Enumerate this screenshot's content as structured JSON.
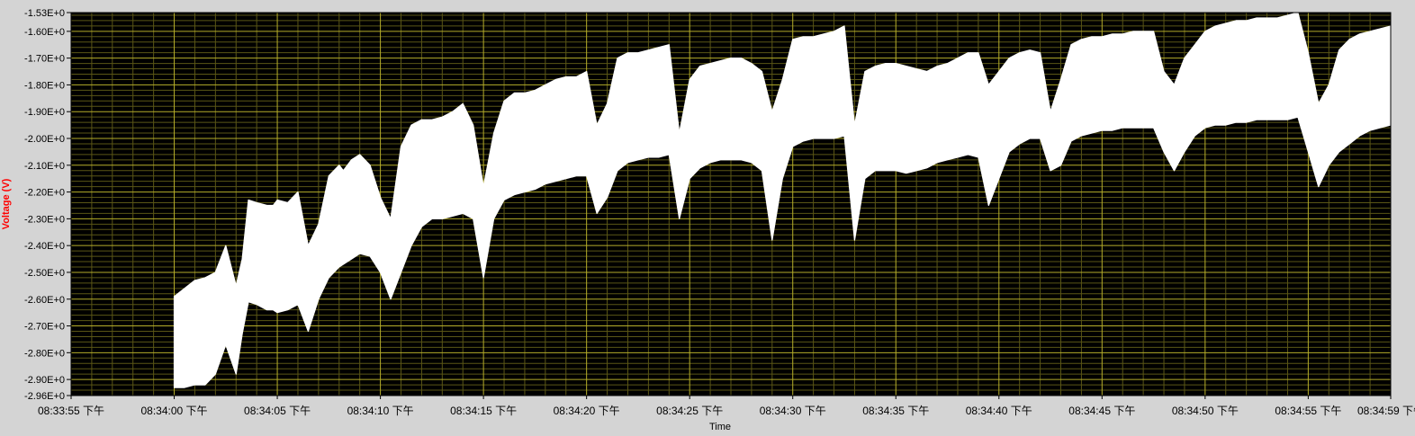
{
  "chart_data": {
    "type": "area",
    "title": "",
    "xlabel": "Time",
    "ylabel": "Voltage (V)",
    "ylim": [
      -2.96,
      -1.53
    ],
    "xlim_seconds": [
      0,
      64
    ],
    "grid": true,
    "y_ticks": [
      "-1.53E+0",
      "-1.60E+0",
      "-1.70E+0",
      "-1.80E+0",
      "-1.90E+0",
      "-2.00E+0",
      "-2.10E+0",
      "-2.20E+0",
      "-2.30E+0",
      "-2.40E+0",
      "-2.50E+0",
      "-2.60E+0",
      "-2.70E+0",
      "-2.80E+0",
      "-2.90E+0",
      "-2.96E+0"
    ],
    "x_ticks": [
      "08:33:55 下午",
      "08:34:00 下午",
      "08:34:05 下午",
      "08:34:10 下午",
      "08:34:15 下午",
      "08:34:20 下午",
      "08:34:25 下午",
      "08:34:30 下午",
      "08:34:35 下午",
      "08:34:40 下午",
      "08:34:45 下午",
      "08:34:50 下午",
      "08:34:55 下午",
      "08:34:59 下午"
    ],
    "colors": {
      "plot_bg": "#000000",
      "grid": "#b5ad2a",
      "grid_minor": "#5a5616",
      "data": "#ffffff",
      "ylabel": "#ff0000",
      "frame_bg": "#d4d4d4"
    },
    "series": [
      {
        "time_s": [
          5.0,
          5.5,
          6.0,
          6.5,
          7.0,
          7.5,
          8.0,
          8.3,
          8.6,
          9.0,
          9.5,
          9.8,
          10.0,
          10.5,
          11.0,
          11.5,
          12.0,
          12.5,
          13.0,
          13.2,
          13.6,
          14.0,
          14.5,
          15.0,
          15.5,
          16.0,
          16.5,
          17.0,
          17.5,
          18.0,
          18.5,
          19.0,
          19.5,
          20.0,
          20.5,
          21.0,
          21.5,
          22.0,
          22.5,
          23.0,
          23.5,
          24.0,
          24.5,
          25.0,
          25.5,
          26.0,
          26.5,
          27.0,
          27.5,
          28.0,
          28.5,
          29.0,
          29.5,
          30.0,
          30.5,
          31.0,
          31.5,
          32.0,
          32.5,
          33.0,
          33.5,
          34.0,
          34.5,
          35.0,
          35.5,
          36.0,
          36.5,
          37.0,
          37.5,
          38.0,
          38.5,
          39.0,
          39.5,
          40.0,
          40.5,
          41.0,
          41.5,
          42.0,
          42.5,
          43.0,
          43.5,
          44.0,
          44.5,
          45.0,
          45.5,
          46.0,
          46.5,
          47.0,
          47.5,
          48.0,
          48.5,
          49.0,
          49.5,
          50.0,
          50.5,
          51.0,
          51.5,
          52.0,
          52.5,
          53.0,
          53.5,
          54.0,
          54.5,
          55.0,
          55.5,
          56.0,
          56.5,
          57.0,
          57.5,
          58.0,
          58.5,
          59.0,
          59.5,
          60.0,
          60.5,
          61.0,
          61.5,
          62.0,
          62.5,
          63.0,
          63.5,
          64.0
        ],
        "upper_v": [
          -2.59,
          -2.56,
          -2.53,
          -2.52,
          -2.5,
          -2.4,
          -2.55,
          -2.45,
          -2.23,
          -2.24,
          -2.25,
          -2.25,
          -2.23,
          -2.24,
          -2.2,
          -2.4,
          -2.32,
          -2.14,
          -2.1,
          -2.12,
          -2.08,
          -2.06,
          -2.1,
          -2.22,
          -2.3,
          -2.03,
          -1.95,
          -1.93,
          -1.93,
          -1.92,
          -1.9,
          -1.87,
          -1.95,
          -2.18,
          -1.98,
          -1.86,
          -1.83,
          -1.83,
          -1.82,
          -1.8,
          -1.78,
          -1.77,
          -1.77,
          -1.75,
          -1.95,
          -1.87,
          -1.7,
          -1.68,
          -1.68,
          -1.67,
          -1.66,
          -1.65,
          -1.98,
          -1.78,
          -1.73,
          -1.72,
          -1.71,
          -1.7,
          -1.7,
          -1.72,
          -1.75,
          -1.9,
          -1.78,
          -1.63,
          -1.62,
          -1.62,
          -1.61,
          -1.6,
          -1.58,
          -1.95,
          -1.75,
          -1.73,
          -1.72,
          -1.72,
          -1.73,
          -1.74,
          -1.75,
          -1.73,
          -1.72,
          -1.7,
          -1.68,
          -1.68,
          -1.8,
          -1.75,
          -1.7,
          -1.68,
          -1.67,
          -1.68,
          -1.9,
          -1.78,
          -1.65,
          -1.63,
          -1.62,
          -1.62,
          -1.61,
          -1.61,
          -1.6,
          -1.6,
          -1.6,
          -1.75,
          -1.8,
          -1.7,
          -1.65,
          -1.6,
          -1.58,
          -1.57,
          -1.56,
          -1.56,
          -1.55,
          -1.55,
          -1.55,
          -1.54,
          -1.53,
          -1.68,
          -1.87,
          -1.8,
          -1.67,
          -1.63,
          -1.61,
          -1.6,
          -1.59,
          -1.58
        ],
        "lower_v": [
          -2.93,
          -2.93,
          -2.92,
          -2.92,
          -2.88,
          -2.77,
          -2.88,
          -2.73,
          -2.61,
          -2.62,
          -2.64,
          -2.64,
          -2.65,
          -2.64,
          -2.62,
          -2.72,
          -2.6,
          -2.52,
          -2.48,
          -2.47,
          -2.45,
          -2.43,
          -2.44,
          -2.5,
          -2.6,
          -2.5,
          -2.4,
          -2.33,
          -2.3,
          -2.3,
          -2.29,
          -2.28,
          -2.3,
          -2.52,
          -2.3,
          -2.23,
          -2.21,
          -2.2,
          -2.19,
          -2.17,
          -2.16,
          -2.15,
          -2.14,
          -2.14,
          -2.28,
          -2.22,
          -2.12,
          -2.09,
          -2.08,
          -2.07,
          -2.07,
          -2.06,
          -2.3,
          -2.15,
          -2.11,
          -2.09,
          -2.08,
          -2.08,
          -2.08,
          -2.09,
          -2.12,
          -2.38,
          -2.15,
          -2.03,
          -2.01,
          -2.0,
          -2.0,
          -2.0,
          -1.99,
          -2.38,
          -2.15,
          -2.12,
          -2.12,
          -2.12,
          -2.13,
          -2.12,
          -2.11,
          -2.09,
          -2.08,
          -2.07,
          -2.06,
          -2.07,
          -2.25,
          -2.15,
          -2.05,
          -2.02,
          -2.0,
          -2.0,
          -2.12,
          -2.1,
          -2.01,
          -1.99,
          -1.98,
          -1.97,
          -1.97,
          -1.96,
          -1.96,
          -1.96,
          -1.96,
          -2.05,
          -2.12,
          -2.05,
          -1.99,
          -1.96,
          -1.95,
          -1.95,
          -1.94,
          -1.94,
          -1.93,
          -1.93,
          -1.93,
          -1.93,
          -1.92,
          -2.05,
          -2.18,
          -2.1,
          -2.05,
          -2.02,
          -1.99,
          -1.97,
          -1.96,
          -1.95
        ]
      }
    ]
  }
}
